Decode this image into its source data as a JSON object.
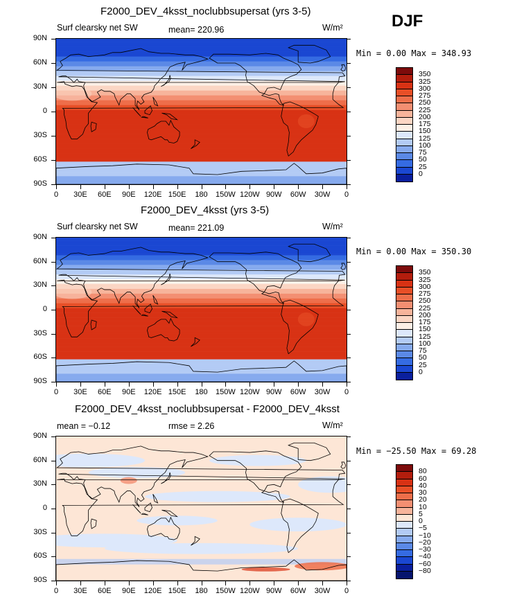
{
  "season": "DJF",
  "unit": "W/m²",
  "lat_labels": [
    "90N",
    "60N",
    "30N",
    "0",
    "30S",
    "60S",
    "90S"
  ],
  "lon_labels": [
    "0",
    "30E",
    "60E",
    "90E",
    "120E",
    "150E",
    "180",
    "150W",
    "120W",
    "90W",
    "60W",
    "30W",
    "0"
  ],
  "panels": [
    {
      "title": "F2000_DEV_4ksst_noclubbsupersat (yrs 3-5)",
      "left_label": "Surf clearsky net SW",
      "stat": "mean= 220.96",
      "minmax": "Min =    0.00 Max = 348.93",
      "kind": "abs"
    },
    {
      "title": "F2000_DEV_4ksst (yrs 3-5)",
      "left_label": "Surf clearsky net SW",
      "stat": "mean= 221.09",
      "minmax": "Min =    0.00 Max = 350.30",
      "kind": "abs"
    },
    {
      "title": "F2000_DEV_4ksst_noclubbsupersat - F2000_DEV_4ksst",
      "left_label": "mean =  −0.12",
      "stat": "rmse =    2.26",
      "minmax": "Min = −25.50 Max =  69.28",
      "kind": "diff"
    }
  ],
  "colorbar_abs": {
    "labels": [
      "350",
      "325",
      "300",
      "275",
      "250",
      "225",
      "200",
      "175",
      "150",
      "125",
      "100",
      "75",
      "50",
      "25",
      "0"
    ],
    "colors": [
      "#7d0b0b",
      "#b31d0d",
      "#d83214",
      "#e84f27",
      "#ee6e4a",
      "#f38f72",
      "#f7b49b",
      "#fbd6c4",
      "#fdf0e6",
      "#dde8fb",
      "#b3cbf5",
      "#86aaee",
      "#5b89e6",
      "#356be2",
      "#1a47d2",
      "#0a1f9e"
    ]
  },
  "colorbar_diff": {
    "labels": [
      "80",
      "60",
      "40",
      "30",
      "20",
      "10",
      "5",
      "0",
      "−5",
      "−10",
      "−20",
      "−30",
      "−40",
      "−60",
      "−80"
    ],
    "colors": [
      "#7d0b0b",
      "#b31d0d",
      "#d83214",
      "#e84f27",
      "#ee6e4a",
      "#f38f72",
      "#f7b49b",
      "#fde6d6",
      "#dde8fb",
      "#b3cbf5",
      "#86aaee",
      "#5b89e6",
      "#356be2",
      "#1a47d2",
      "#0a1f9e",
      "#06146e"
    ]
  }
}
